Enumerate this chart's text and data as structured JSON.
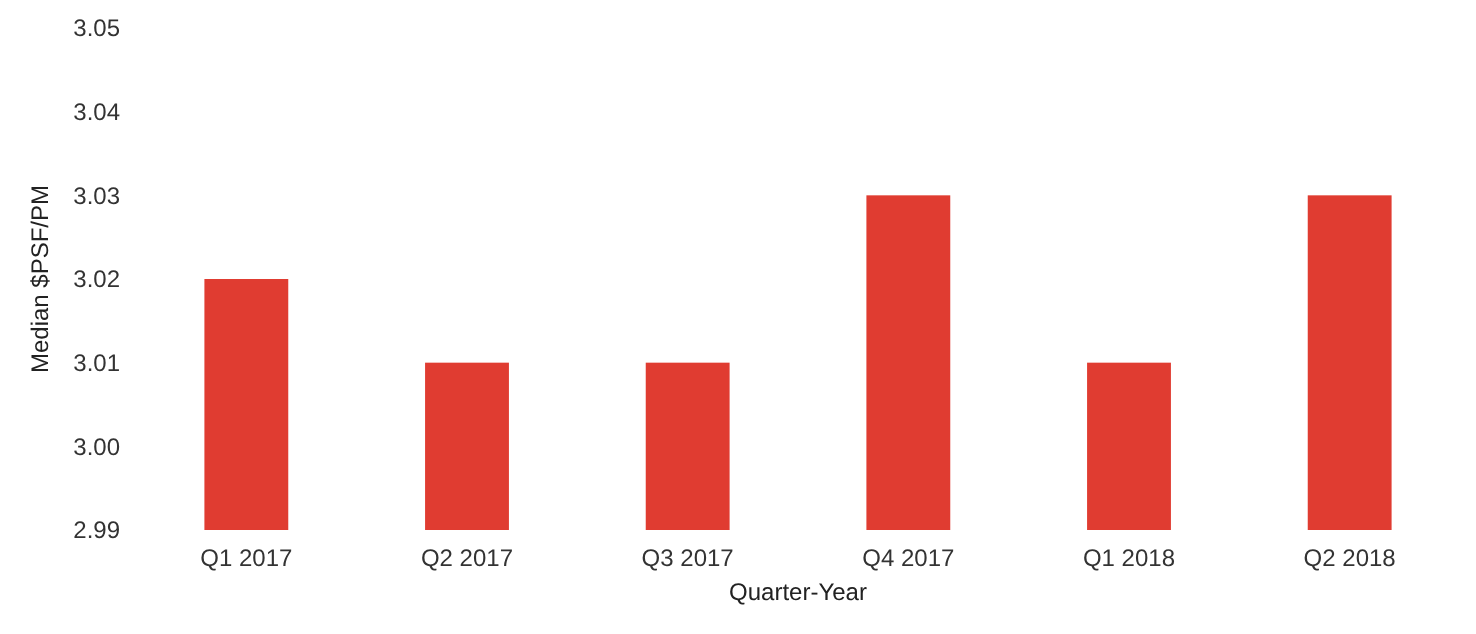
{
  "chart_data": {
    "type": "bar",
    "xlabel": "Quarter-Year",
    "ylabel": "Median $PSF/PM",
    "categories": [
      "Q1 2017",
      "Q2 2017",
      "Q3 2017",
      "Q4 2017",
      "Q1 2018",
      "Q2 2018"
    ],
    "values": [
      3.02,
      3.01,
      3.01,
      3.03,
      3.01,
      3.03
    ],
    "color": "#e03c31",
    "ylim": [
      2.99,
      3.05
    ],
    "yticks": [
      {
        "value": 2.99,
        "label": "2.99"
      },
      {
        "value": 3.0,
        "label": "3.00"
      },
      {
        "value": 3.01,
        "label": "3.01"
      },
      {
        "value": 3.02,
        "label": "3.02"
      },
      {
        "value": 3.03,
        "label": "3.03"
      },
      {
        "value": 3.04,
        "label": "3.04"
      },
      {
        "value": 3.05,
        "label": "3.05"
      }
    ],
    "grid": false
  }
}
